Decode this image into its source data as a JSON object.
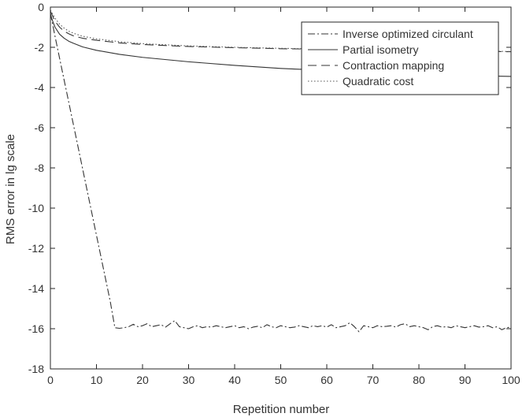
{
  "chart_data": {
    "type": "line",
    "title": "",
    "xlabel": "Repetition number",
    "ylabel": "RMS error in lg scale",
    "xlim": [
      0,
      100
    ],
    "ylim": [
      -18,
      0
    ],
    "x_ticks": [
      0,
      10,
      20,
      30,
      40,
      50,
      60,
      70,
      80,
      90,
      100
    ],
    "y_ticks": [
      0,
      -2,
      -4,
      -6,
      -8,
      -10,
      -12,
      -14,
      -16,
      -18
    ],
    "grid": false,
    "legend_position": "top-right",
    "series": [
      {
        "name": "Inverse optimized circulant",
        "style": "dash-dot",
        "color": "#333333",
        "x": [
          0,
          1,
          2,
          3,
          4,
          5,
          6,
          7,
          8,
          9,
          10,
          11,
          12,
          13,
          14,
          15,
          16,
          17,
          18,
          19,
          20,
          21,
          22,
          23,
          24,
          25,
          26,
          27,
          28,
          29,
          30,
          31,
          32,
          33,
          34,
          35,
          36,
          37,
          38,
          39,
          40,
          41,
          42,
          43,
          44,
          45,
          46,
          47,
          48,
          49,
          50,
          51,
          52,
          53,
          54,
          55,
          56,
          57,
          58,
          59,
          60,
          61,
          62,
          63,
          64,
          65,
          66,
          67,
          68,
          69,
          70,
          71,
          72,
          73,
          74,
          75,
          76,
          77,
          78,
          79,
          80,
          81,
          82,
          83,
          84,
          85,
          86,
          87,
          88,
          89,
          90,
          91,
          92,
          93,
          94,
          95,
          96,
          97,
          98,
          99,
          100
        ],
        "y": [
          -0.3,
          -1.45,
          -2.55,
          -3.65,
          -4.75,
          -5.85,
          -6.95,
          -8.05,
          -9.15,
          -10.25,
          -11.35,
          -12.45,
          -13.55,
          -14.65,
          -15.95,
          -15.98,
          -15.95,
          -15.9,
          -15.78,
          -15.9,
          -15.85,
          -15.75,
          -15.9,
          -15.85,
          -15.8,
          -15.92,
          -15.75,
          -15.6,
          -15.9,
          -15.95,
          -16.0,
          -15.9,
          -15.85,
          -15.95,
          -15.9,
          -15.92,
          -15.85,
          -15.9,
          -15.95,
          -15.9,
          -15.85,
          -15.95,
          -15.9,
          -16.0,
          -15.92,
          -15.88,
          -15.95,
          -15.8,
          -15.9,
          -15.95,
          -15.85,
          -15.9,
          -15.95,
          -15.92,
          -15.85,
          -15.9,
          -15.95,
          -15.85,
          -15.9,
          -15.85,
          -15.92,
          -15.8,
          -15.95,
          -15.9,
          -15.85,
          -15.7,
          -15.9,
          -16.15,
          -15.85,
          -15.9,
          -15.95,
          -15.85,
          -15.9,
          -15.88,
          -15.85,
          -15.92,
          -15.8,
          -15.75,
          -15.9,
          -15.85,
          -15.9,
          -15.95,
          -16.05,
          -15.9,
          -15.85,
          -15.92,
          -15.9,
          -15.95,
          -15.85,
          -15.9,
          -15.95,
          -15.9,
          -15.85,
          -15.92,
          -15.9,
          -15.85,
          -15.95,
          -15.9,
          -16.05,
          -15.95,
          -15.92
        ]
      },
      {
        "name": "Partial isometry",
        "style": "solid",
        "color": "#333333",
        "x": [
          0,
          0.5,
          1,
          2,
          3,
          4,
          5,
          7,
          10,
          15,
          20,
          30,
          40,
          50,
          60,
          70,
          80,
          90,
          100
        ],
        "y": [
          -0.35,
          -0.7,
          -1.0,
          -1.35,
          -1.55,
          -1.7,
          -1.8,
          -1.98,
          -2.15,
          -2.35,
          -2.5,
          -2.72,
          -2.9,
          -3.05,
          -3.15,
          -3.25,
          -3.33,
          -3.4,
          -3.45
        ]
      },
      {
        "name": "Contraction mapping",
        "style": "dashed",
        "color": "#333333",
        "x": [
          0,
          0.5,
          1,
          2,
          3,
          4,
          5,
          7,
          10,
          15,
          20,
          30,
          40,
          50,
          60,
          70,
          80,
          90,
          100
        ],
        "y": [
          -0.2,
          -0.45,
          -0.7,
          -1.0,
          -1.2,
          -1.33,
          -1.43,
          -1.55,
          -1.65,
          -1.78,
          -1.86,
          -1.96,
          -2.02,
          -2.07,
          -2.1,
          -2.13,
          -2.16,
          -2.19,
          -2.22
        ]
      },
      {
        "name": "Quadratic cost",
        "style": "dotted",
        "color": "#555555",
        "x": [
          0,
          0.5,
          1,
          2,
          3,
          4,
          5,
          7,
          10,
          15,
          20,
          30,
          40,
          50,
          60,
          70,
          80,
          90,
          100
        ],
        "y": [
          -0.15,
          -0.35,
          -0.55,
          -0.85,
          -1.05,
          -1.2,
          -1.3,
          -1.45,
          -1.58,
          -1.72,
          -1.82,
          -1.93,
          -2.0,
          -2.05,
          -2.09,
          -2.12,
          -2.15,
          -2.18,
          -2.21
        ]
      }
    ]
  }
}
